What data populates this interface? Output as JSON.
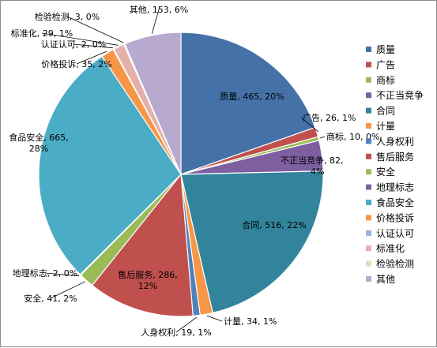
{
  "chart_data": {
    "type": "pie",
    "title": "",
    "start_angle_deg": 0,
    "direction": "clockwise",
    "legend_placement": "right",
    "slices": [
      {
        "label": "质量",
        "value": 465,
        "percent": "20%",
        "color": "#4472A8"
      },
      {
        "label": "广告",
        "value": 26,
        "percent": "1%",
        "color": "#C0504D"
      },
      {
        "label": "商标",
        "value": 10,
        "percent": "0%",
        "color": "#9BBB59"
      },
      {
        "label": "不正当竞争",
        "value": 82,
        "percent": "4%",
        "color": "#7E5FA0"
      },
      {
        "label": "合同",
        "value": 516,
        "percent": "22%",
        "color": "#31849B"
      },
      {
        "label": "计量",
        "value": 34,
        "percent": "1%",
        "color": "#F79646"
      },
      {
        "label": "人身权利",
        "value": 19,
        "percent": "1%",
        "color": "#4F81BD"
      },
      {
        "label": "售后服务",
        "value": 286,
        "percent": "12%",
        "color": "#C0504D"
      },
      {
        "label": "安全",
        "value": 41,
        "percent": "2%",
        "color": "#9BBB59"
      },
      {
        "label": "地理标志",
        "value": 2,
        "percent": "0%",
        "color": "#8064A2"
      },
      {
        "label": "食品安全",
        "value": 665,
        "percent": "28%",
        "color": "#4BACC6"
      },
      {
        "label": "价格投诉",
        "value": 35,
        "percent": "2%",
        "color": "#F79646"
      },
      {
        "label": "认证认可",
        "value": 2,
        "percent": "0%",
        "color": "#95B3D7"
      },
      {
        "label": "标准化",
        "value": 29,
        "percent": "1%",
        "color": "#E6B0AA"
      },
      {
        "label": "检验检测",
        "value": 3,
        "percent": "0%",
        "color": "#D7E4BC"
      },
      {
        "label": "其他",
        "value": 153,
        "percent": "6%",
        "color": "#B8A9CF"
      }
    ]
  }
}
